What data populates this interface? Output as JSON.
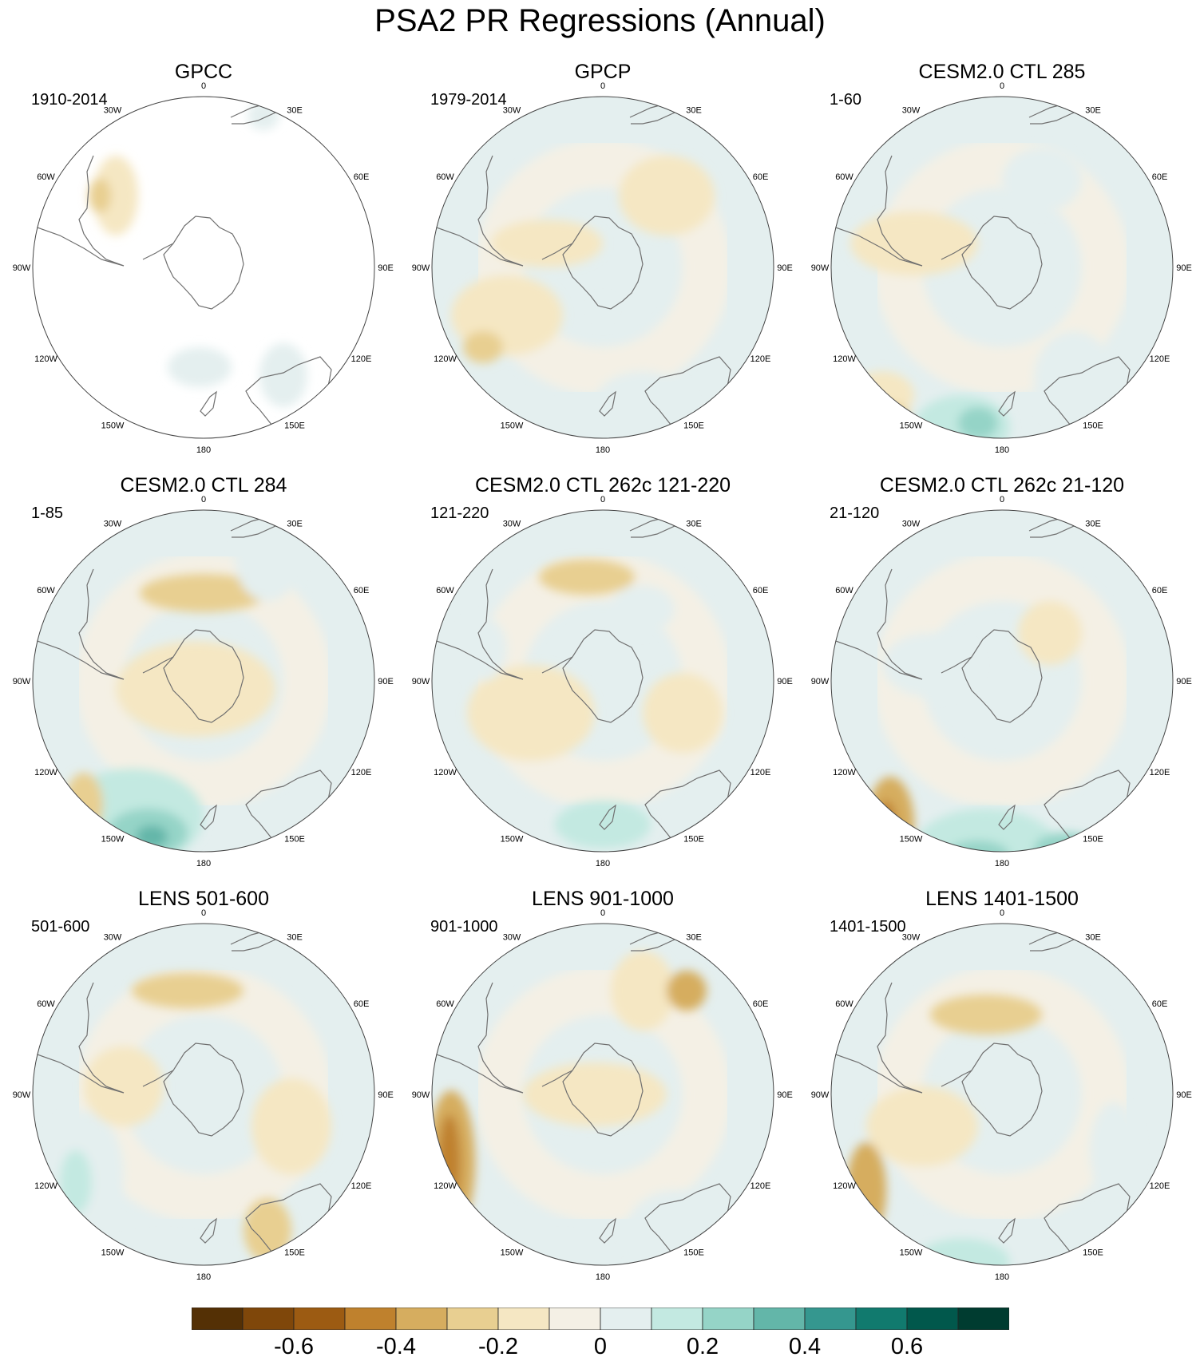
{
  "title": "PSA2 PR Regressions (Annual)",
  "longitude_labels": [
    "0",
    "30E",
    "60E",
    "90E",
    "120E",
    "150E",
    "180",
    "150W",
    "120W",
    "90W",
    "60W",
    "30W"
  ],
  "panels": [
    {
      "title": "GPCC",
      "period": "1910-2014"
    },
    {
      "title": "GPCP",
      "period": "1979-2014"
    },
    {
      "title": "CESM2.0 CTL 285",
      "period": "1-60"
    },
    {
      "title": "CESM2.0 CTL 284",
      "period": "1-85"
    },
    {
      "title": "CESM2.0 CTL 262c 121-220",
      "period": "121-220"
    },
    {
      "title": "CESM2.0 CTL 262c 21-120",
      "period": "21-120"
    },
    {
      "title": "LENS 501-600",
      "period": "501-600"
    },
    {
      "title": "LENS 901-1000",
      "period": "901-1000"
    },
    {
      "title": "LENS 1401-1500",
      "period": "1401-1500"
    }
  ],
  "colorbar": {
    "colors": [
      "#543005",
      "#7f470a",
      "#9c5b12",
      "#bf812d",
      "#d6ad5f",
      "#e8cf91",
      "#f5e7c3",
      "#f4f0e5",
      "#e4efef",
      "#c3e9e1",
      "#95d4c7",
      "#63b6a9",
      "#35978f",
      "#117a6e",
      "#01584c",
      "#003c30"
    ],
    "tick_labels": [
      "-0.6",
      "-0.4",
      "-0.2",
      "0",
      "0.2",
      "0.4",
      "0.6"
    ]
  }
}
